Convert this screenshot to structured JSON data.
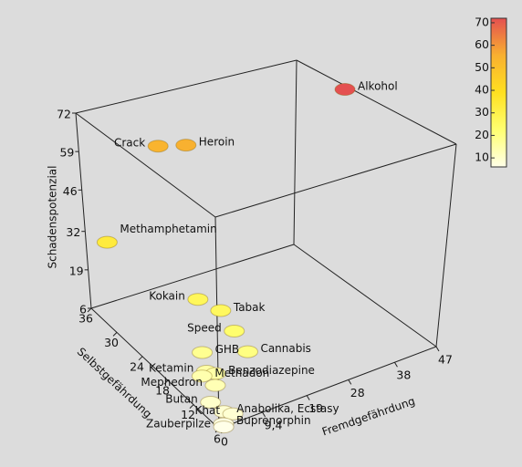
{
  "chart_data": {
    "type": "scatter3d",
    "x_label": "Fremdgefährdung",
    "y_label": "Selbstgefährdung",
    "z_label": "Schadenspotenzial",
    "labels": [
      "Alkohol",
      "Crack",
      "Heroin",
      "Methamphetamin",
      "Kokain",
      "Tabak",
      "Speed",
      "GHB",
      "Cannabis",
      "Ketamin",
      "Benzodiazepine",
      "Mephedron",
      "Methadon",
      "Butan",
      "Anabolika, Ecstasy",
      "Khat",
      "Buprenorphin",
      "Zauberpilze"
    ],
    "x": [
      46,
      17,
      21,
      1,
      8,
      10,
      10,
      4,
      10,
      3,
      4,
      3,
      2,
      1,
      2,
      3,
      1,
      1
    ],
    "y": [
      26,
      36,
      34,
      32,
      19,
      16,
      13,
      14,
      10,
      12,
      11,
      10,
      12,
      9,
      7,
      6,
      6,
      6
    ],
    "z": [
      72,
      54,
      55,
      33,
      27,
      26,
      23,
      18,
      20,
      15,
      15,
      13,
      14,
      10,
      9,
      9,
      7,
      6
    ],
    "xlim": [
      0,
      47
    ],
    "ylim": [
      6,
      36
    ],
    "zlim": [
      6,
      72
    ],
    "xticks": [
      0,
      {
        "value": 9.4,
        "label": "9,4"
      },
      19,
      28,
      38,
      47
    ],
    "yticks": [
      6,
      12,
      18,
      24,
      30,
      36
    ],
    "zticks": [
      6,
      19,
      32,
      46,
      59,
      72
    ],
    "colormap": [
      "#ffffe8",
      "#ffff70",
      "#ffe020",
      "#f8b030",
      "#e45050"
    ],
    "clim": [
      6,
      72
    ],
    "colorbar_ticks": [
      10,
      20,
      30,
      40,
      50,
      60,
      70
    ]
  }
}
